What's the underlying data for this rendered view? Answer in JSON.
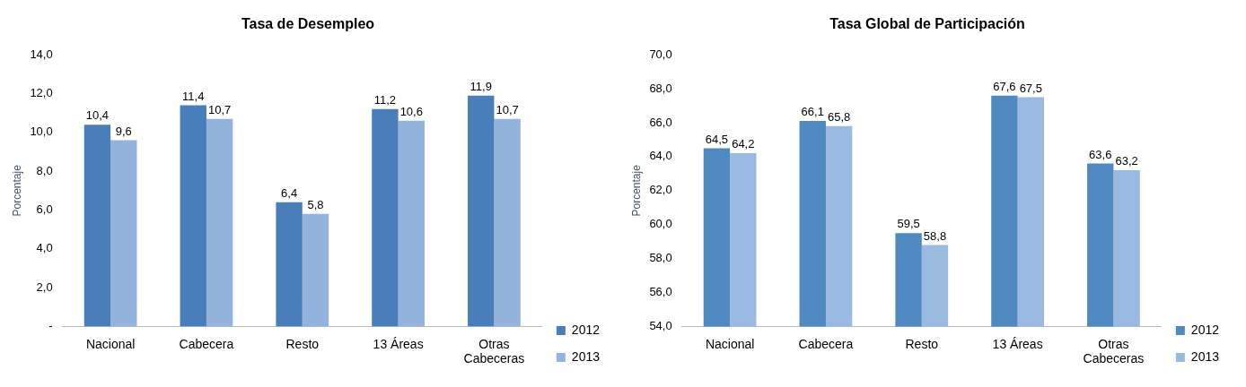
{
  "chart_data": [
    {
      "type": "bar",
      "title": "Tasa de Desempleo",
      "ylabel": "Porcentaje",
      "categories": [
        "Nacional",
        "Cabecera",
        "Resto",
        "13 Áreas",
        "Otras Cabeceras"
      ],
      "series": [
        {
          "name": "2012",
          "color": "#4a7ebb",
          "values": [
            10.4,
            11.4,
            6.4,
            11.2,
            11.9
          ],
          "value_labels": [
            "10,4",
            "11,4",
            "6,4",
            "11,2",
            "11,9"
          ]
        },
        {
          "name": "2013",
          "color": "#93b3dc",
          "values": [
            9.6,
            10.7,
            5.8,
            10.6,
            10.7
          ],
          "value_labels": [
            "9,6",
            "10,7",
            "5,8",
            "10,6",
            "10,7"
          ]
        }
      ],
      "ylim": [
        0,
        14
      ],
      "yticks": [
        {
          "value": 0,
          "label": "-"
        },
        {
          "value": 2,
          "label": "2,0"
        },
        {
          "value": 4,
          "label": "4,0"
        },
        {
          "value": 6,
          "label": "6,0"
        },
        {
          "value": 8,
          "label": "8,0"
        },
        {
          "value": 10,
          "label": "10,0"
        },
        {
          "value": 12,
          "label": "12,0"
        },
        {
          "value": 14,
          "label": "14,0"
        }
      ],
      "grid": false,
      "legend": "right"
    },
    {
      "type": "bar",
      "title": "Tasa Global de Participación",
      "ylabel": "Porcentaje",
      "categories": [
        "Nacional",
        "Cabecera",
        "Resto",
        "13 Áreas",
        "Otras Cabeceras"
      ],
      "series": [
        {
          "name": "2012",
          "color": "#4f89c0",
          "values": [
            64.5,
            66.1,
            59.5,
            67.6,
            63.6
          ],
          "value_labels": [
            "64,5",
            "66,1",
            "59,5",
            "67,6",
            "63,6"
          ]
        },
        {
          "name": "2013",
          "color": "#9ab9e0",
          "values": [
            64.2,
            65.8,
            58.8,
            67.5,
            63.2
          ],
          "value_labels": [
            "64,2",
            "65,8",
            "58,8",
            "67,5",
            "63,2"
          ]
        }
      ],
      "ylim": [
        54,
        70
      ],
      "yticks": [
        {
          "value": 54,
          "label": "54,0"
        },
        {
          "value": 56,
          "label": "56,0"
        },
        {
          "value": 58,
          "label": "58,0"
        },
        {
          "value": 60,
          "label": "60,0"
        },
        {
          "value": 62,
          "label": "62,0"
        },
        {
          "value": 64,
          "label": "64,0"
        },
        {
          "value": 66,
          "label": "66,0"
        },
        {
          "value": 68,
          "label": "68,0"
        },
        {
          "value": 70,
          "label": "70,0"
        }
      ],
      "grid": false,
      "legend": "right"
    }
  ]
}
